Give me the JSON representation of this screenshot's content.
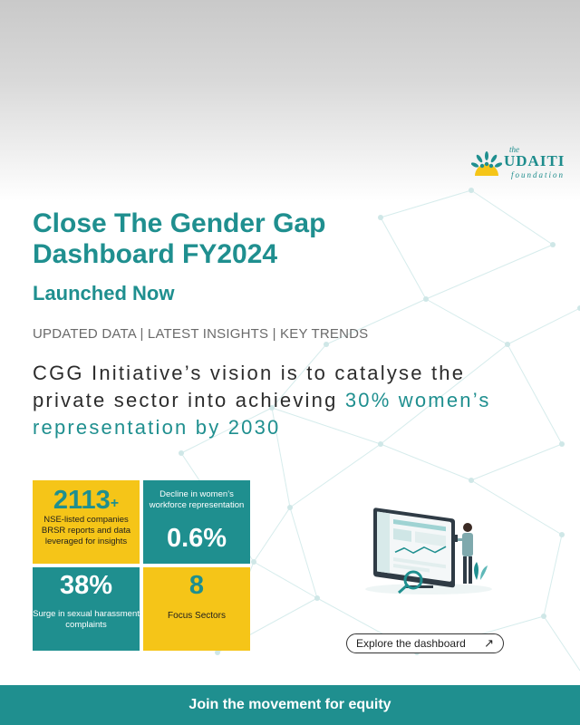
{
  "logo": {
    "prefix": "the",
    "name": "UDAITI",
    "suffix": "foundation"
  },
  "headline": {
    "line1": "Close The Gender Gap",
    "line2": "Dashboard FY2024",
    "subtitle": "Launched Now"
  },
  "tagline": "UPDATED DATA | LATEST INSIGHTS | KEY TRENDS",
  "vision": {
    "text_part1": "CGG Initiative’s vision is to catalyse the private sector into achieving ",
    "highlight": "30% women’s representation by 2030"
  },
  "stats": [
    {
      "value": "2113",
      "suffix": "+",
      "description": "NSE-listed companies BRSR reports and data leveraged for insights"
    },
    {
      "value": "0.6%",
      "description": "Decline in women’s workforce representation"
    },
    {
      "value": "38%",
      "description": "Surge in sexual harassment complaints"
    },
    {
      "value": "8",
      "description": "Focus Sectors"
    }
  ],
  "cta": {
    "label": "Explore the dashboard",
    "icon": "arrow-up-right-icon"
  },
  "footer": {
    "text": "Join the movement for equity"
  },
  "colors": {
    "teal": "#1f8f8f",
    "yellow": "#f5c518",
    "gray_text": "#6a6a6a"
  }
}
